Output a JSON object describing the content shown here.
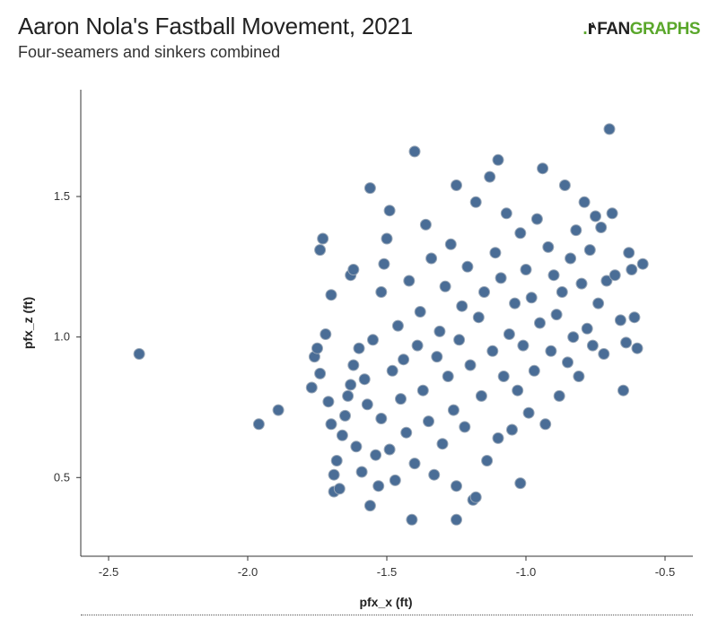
{
  "header": {
    "title": "Aaron Nola's Fastball Movement, 2021",
    "subtitle": "Four-seamers and sinkers combined"
  },
  "logo": {
    "prefix": ".",
    "fan": "FAN",
    "graphs": "GRAPHS",
    "color": "#5aa72b"
  },
  "chart_data": {
    "type": "scatter",
    "title": "Aaron Nola's Fastball Movement, 2021",
    "subtitle": "Four-seamers and sinkers combined",
    "xlabel": "pfx_x (ft)",
    "ylabel": "pfx_z (ft)",
    "xlim": [
      -2.6,
      -0.4
    ],
    "ylim": [
      0.22,
      1.88
    ],
    "xticks": [
      "-2.5",
      "-2.0",
      "-1.5",
      "-1.0",
      "-0.5"
    ],
    "yticks": [
      "0.5",
      "1.0",
      "1.5"
    ],
    "grid": false,
    "point_color": "#4a6d96",
    "point_edge": "#9aa8b8",
    "points": [
      [
        -2.39,
        0.94
      ],
      [
        -1.96,
        0.69
      ],
      [
        -1.89,
        0.74
      ],
      [
        -1.77,
        0.82
      ],
      [
        -1.76,
        0.93
      ],
      [
        -1.75,
        0.96
      ],
      [
        -1.74,
        0.87
      ],
      [
        -1.74,
        1.31
      ],
      [
        -1.73,
        1.35
      ],
      [
        -1.72,
        1.01
      ],
      [
        -1.71,
        0.77
      ],
      [
        -1.7,
        0.69
      ],
      [
        -1.7,
        1.15
      ],
      [
        -1.69,
        0.45
      ],
      [
        -1.69,
        0.51
      ],
      [
        -1.68,
        0.56
      ],
      [
        -1.67,
        0.46
      ],
      [
        -1.66,
        0.65
      ],
      [
        -1.65,
        0.72
      ],
      [
        -1.64,
        0.79
      ],
      [
        -1.63,
        0.83
      ],
      [
        -1.63,
        1.22
      ],
      [
        -1.62,
        1.24
      ],
      [
        -1.62,
        0.9
      ],
      [
        -1.61,
        0.61
      ],
      [
        -1.6,
        0.96
      ],
      [
        -1.59,
        0.52
      ],
      [
        -1.58,
        0.85
      ],
      [
        -1.57,
        0.76
      ],
      [
        -1.56,
        0.4
      ],
      [
        -1.56,
        1.53
      ],
      [
        -1.55,
        0.99
      ],
      [
        -1.54,
        0.58
      ],
      [
        -1.53,
        0.47
      ],
      [
        -1.52,
        0.71
      ],
      [
        -1.52,
        1.16
      ],
      [
        -1.51,
        1.26
      ],
      [
        -1.5,
        1.35
      ],
      [
        -1.49,
        1.45
      ],
      [
        -1.49,
        0.6
      ],
      [
        -1.48,
        0.88
      ],
      [
        -1.47,
        0.49
      ],
      [
        -1.46,
        1.04
      ],
      [
        -1.45,
        0.78
      ],
      [
        -1.44,
        0.92
      ],
      [
        -1.43,
        0.66
      ],
      [
        -1.42,
        1.2
      ],
      [
        -1.41,
        0.35
      ],
      [
        -1.4,
        1.66
      ],
      [
        -1.4,
        0.55
      ],
      [
        -1.39,
        0.97
      ],
      [
        -1.38,
        1.09
      ],
      [
        -1.37,
        0.81
      ],
      [
        -1.36,
        1.4
      ],
      [
        -1.35,
        0.7
      ],
      [
        -1.34,
        1.28
      ],
      [
        -1.33,
        0.51
      ],
      [
        -1.32,
        0.93
      ],
      [
        -1.31,
        1.02
      ],
      [
        -1.3,
        0.62
      ],
      [
        -1.29,
        1.18
      ],
      [
        -1.28,
        0.86
      ],
      [
        -1.27,
        1.33
      ],
      [
        -1.26,
        0.74
      ],
      [
        -1.25,
        0.47
      ],
      [
        -1.25,
        0.35
      ],
      [
        -1.25,
        1.54
      ],
      [
        -1.24,
        0.99
      ],
      [
        -1.23,
        1.11
      ],
      [
        -1.22,
        0.68
      ],
      [
        -1.21,
        1.25
      ],
      [
        -1.2,
        0.9
      ],
      [
        -1.19,
        0.42
      ],
      [
        -1.18,
        0.43
      ],
      [
        -1.18,
        1.48
      ],
      [
        -1.17,
        1.07
      ],
      [
        -1.16,
        0.79
      ],
      [
        -1.15,
        1.16
      ],
      [
        -1.14,
        0.56
      ],
      [
        -1.13,
        1.57
      ],
      [
        -1.12,
        0.95
      ],
      [
        -1.11,
        1.3
      ],
      [
        -1.1,
        1.63
      ],
      [
        -1.1,
        0.64
      ],
      [
        -1.09,
        1.21
      ],
      [
        -1.08,
        0.86
      ],
      [
        -1.07,
        1.44
      ],
      [
        -1.06,
        1.01
      ],
      [
        -1.05,
        0.67
      ],
      [
        -1.04,
        1.12
      ],
      [
        -1.03,
        0.81
      ],
      [
        -1.02,
        0.48
      ],
      [
        -1.02,
        1.37
      ],
      [
        -1.01,
        0.97
      ],
      [
        -1.0,
        1.24
      ],
      [
        -0.99,
        0.73
      ],
      [
        -0.98,
        1.14
      ],
      [
        -0.97,
        0.88
      ],
      [
        -0.96,
        1.42
      ],
      [
        -0.95,
        1.05
      ],
      [
        -0.94,
        1.6
      ],
      [
        -0.93,
        0.69
      ],
      [
        -0.92,
        1.32
      ],
      [
        -0.91,
        0.95
      ],
      [
        -0.9,
        1.22
      ],
      [
        -0.89,
        1.08
      ],
      [
        -0.88,
        0.79
      ],
      [
        -0.87,
        1.16
      ],
      [
        -0.86,
        1.54
      ],
      [
        -0.85,
        0.91
      ],
      [
        -0.84,
        1.28
      ],
      [
        -0.83,
        1.0
      ],
      [
        -0.82,
        1.38
      ],
      [
        -0.81,
        0.86
      ],
      [
        -0.8,
        1.19
      ],
      [
        -0.79,
        1.48
      ],
      [
        -0.78,
        1.03
      ],
      [
        -0.77,
        1.31
      ],
      [
        -0.76,
        0.97
      ],
      [
        -0.75,
        1.43
      ],
      [
        -0.74,
        1.12
      ],
      [
        -0.73,
        1.39
      ],
      [
        -0.72,
        0.94
      ],
      [
        -0.71,
        1.2
      ],
      [
        -0.7,
        1.74
      ],
      [
        -0.69,
        1.44
      ],
      [
        -0.68,
        1.22
      ],
      [
        -0.66,
        1.06
      ],
      [
        -0.65,
        0.81
      ],
      [
        -0.64,
        0.98
      ],
      [
        -0.63,
        1.3
      ],
      [
        -0.62,
        1.24
      ],
      [
        -0.61,
        1.07
      ],
      [
        -0.6,
        0.96
      ],
      [
        -0.58,
        1.26
      ]
    ]
  }
}
